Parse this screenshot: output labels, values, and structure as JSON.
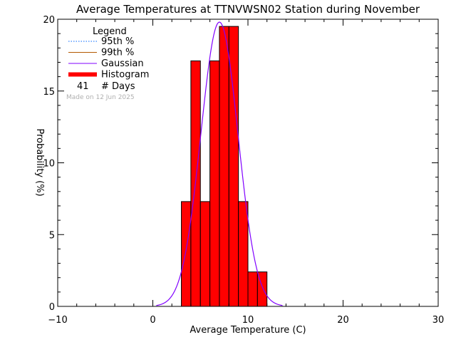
{
  "chart_data": {
    "type": "bar",
    "title": "Average Temperatures at TTNVWSN02 Station during November",
    "xlabel": "Average Temperature (C)",
    "ylabel": "Probability (%)",
    "xlim": [
      -10,
      30
    ],
    "ylim": [
      0,
      20
    ],
    "x_ticks": [
      "−10",
      "0",
      "10",
      "20",
      "30"
    ],
    "y_ticks": [
      "0",
      "5",
      "10",
      "15",
      "20"
    ],
    "histogram": {
      "bin_edges": [
        3,
        4,
        5,
        6,
        7,
        8,
        9,
        10,
        11,
        12
      ],
      "values": [
        7.3,
        17.1,
        7.3,
        17.1,
        19.5,
        19.5,
        7.3,
        2.4,
        2.4
      ],
      "color": "#ff0000"
    },
    "gaussian": {
      "mean": 7.0,
      "sigma": 1.95,
      "peak": 19.8,
      "color": "#8000ff"
    },
    "legend": {
      "title": "Legend",
      "placement": "top-left",
      "entries": [
        {
          "label": "95th %",
          "color": "#0066ff",
          "style": "dotted"
        },
        {
          "label": "99th %",
          "color": "#b35900",
          "style": "solid"
        },
        {
          "label": "Gaussian",
          "color": "#8000ff",
          "style": "solid"
        },
        {
          "label": "Histogram",
          "color": "#ff0000",
          "style": "thick"
        }
      ],
      "days_count": "41",
      "days_label": "# Days"
    },
    "watermark": "Made on 12 Jun 2025"
  }
}
